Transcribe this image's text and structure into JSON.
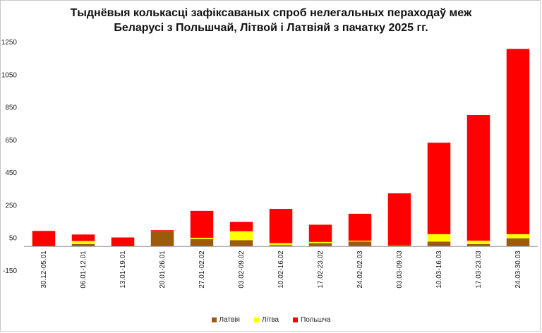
{
  "title_line1": "Тыднёвыя колькасці зафіксаваных спроб нелегальных пераходаў меж",
  "title_line2": "Беларусі з Польшчай, Літвой і Латвіяй з пачатку 2025 гг.",
  "chart_data": {
    "type": "bar",
    "stacked": true,
    "categories": [
      "30.12-05.01",
      "06.01-12.01",
      "13.01-19.01",
      "20.01-26.01",
      "27.01-02.02",
      "03.02-09.02",
      "10.02-16.02",
      "17.02-23.02",
      "24.02-02.03",
      "03.03-09.03",
      "10.03-16.03",
      "17.03-23.03",
      "24.03-30.03"
    ],
    "series": [
      {
        "name": "Латвія",
        "color": "#9c5a0c",
        "values": [
          0,
          15,
          0,
          95,
          45,
          38,
          8,
          20,
          30,
          10,
          30,
          15,
          50
        ]
      },
      {
        "name": "Літва",
        "color": "#ffff00",
        "values": [
          0,
          18,
          0,
          0,
          8,
          55,
          12,
          8,
          5,
          0,
          45,
          20,
          25
        ]
      },
      {
        "name": "Польшча",
        "color": "#ff0000",
        "values": [
          95,
          40,
          55,
          5,
          165,
          57,
          210,
          105,
          165,
          315,
          560,
          770,
          1135
        ]
      }
    ],
    "ylim": [
      -150,
      1250
    ],
    "yticks": [
      -150,
      50,
      250,
      450,
      650,
      850,
      1050,
      1250
    ],
    "legend_position": "bottom"
  }
}
